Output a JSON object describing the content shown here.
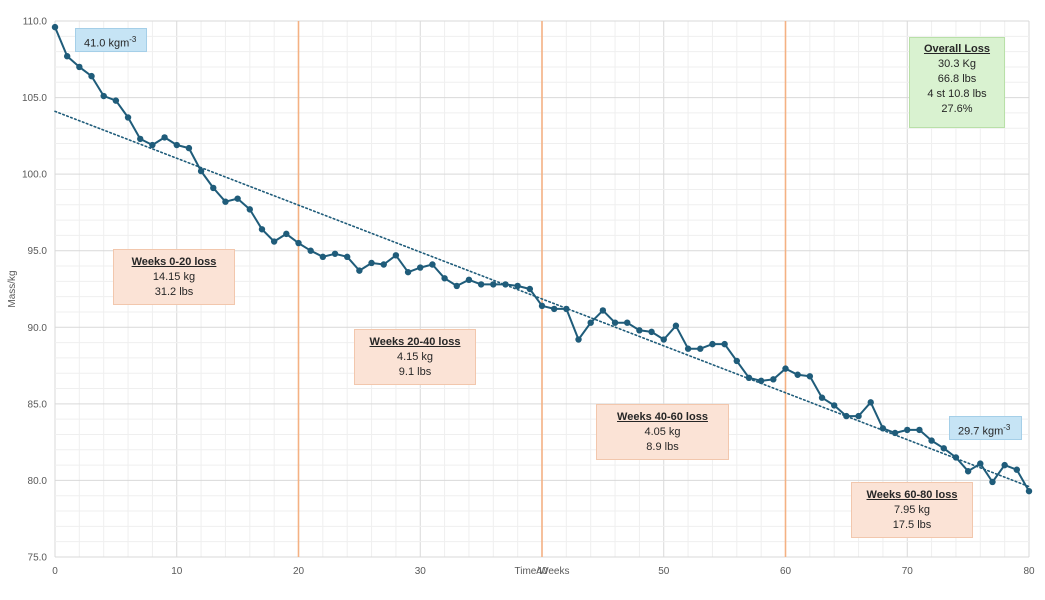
{
  "chart_data": {
    "type": "line",
    "title": "",
    "xlabel": "Time/Weeks",
    "ylabel": "Mass/kg",
    "xlim": [
      0,
      80
    ],
    "ylim": [
      75,
      110
    ],
    "x_ticks": [
      0,
      10,
      20,
      30,
      40,
      50,
      60,
      70,
      80
    ],
    "y_ticks": [
      "75.0",
      "80.0",
      "85.0",
      "90.0",
      "95.0",
      "100.0",
      "105.0",
      "110.0"
    ],
    "grid": true,
    "series": [
      {
        "name": "Mass",
        "color": "#1f5c7a",
        "x": [
          0,
          1,
          2,
          3,
          4,
          5,
          6,
          7,
          8,
          9,
          10,
          11,
          12,
          13,
          14,
          15,
          16,
          17,
          18,
          19,
          20,
          21,
          22,
          23,
          24,
          25,
          26,
          27,
          28,
          29,
          30,
          31,
          32,
          33,
          34,
          35,
          36,
          37,
          38,
          39,
          40,
          41,
          42,
          43,
          44,
          45,
          46,
          47,
          48,
          49,
          50,
          51,
          52,
          53,
          54,
          55,
          56,
          57,
          58,
          59,
          60,
          61,
          62,
          63,
          64,
          65,
          66,
          67,
          68,
          69,
          70,
          71,
          72,
          73,
          74,
          75,
          76,
          77,
          78,
          79,
          80
        ],
        "values": [
          109.6,
          107.7,
          107.0,
          106.4,
          105.1,
          104.8,
          103.7,
          102.3,
          101.9,
          102.4,
          101.9,
          101.7,
          100.2,
          99.1,
          98.2,
          98.4,
          97.7,
          96.4,
          95.6,
          96.1,
          95.5,
          95.0,
          94.6,
          94.8,
          94.6,
          93.7,
          94.2,
          94.1,
          94.7,
          93.6,
          93.9,
          94.1,
          93.2,
          92.7,
          93.1,
          92.8,
          92.8,
          92.8,
          92.7,
          92.5,
          91.4,
          91.2,
          91.2,
          89.2,
          90.3,
          91.1,
          90.3,
          90.3,
          89.8,
          89.7,
          89.2,
          90.1,
          88.6,
          88.6,
          88.9,
          88.9,
          87.8,
          86.7,
          86.5,
          86.6,
          87.3,
          86.9,
          86.8,
          85.4,
          84.9,
          84.2,
          84.2,
          85.1,
          83.4,
          83.1,
          83.3,
          83.3,
          82.6,
          82.1,
          81.5,
          80.6,
          81.1,
          79.9,
          81.0,
          80.7,
          79.3
        ]
      }
    ],
    "trendline": {
      "style": "dotted",
      "color": "#1f5c7a",
      "start": [
        0,
        104.1
      ],
      "end": [
        80,
        79.6
      ]
    },
    "vertical_markers": [
      20,
      40,
      60
    ],
    "marker_color": "#f4b183"
  },
  "annotations": {
    "overall": {
      "title": "Overall Loss",
      "line1": "30.3 Kg",
      "line2": "66.8 lbs",
      "line3": "4 st 10.8 lbs",
      "line4": "27.6%"
    },
    "w0_20": {
      "title": "Weeks 0-20 loss",
      "line1": "14.15 kg",
      "line2": "31.2 lbs"
    },
    "w20_40": {
      "title": "Weeks 20-40 loss",
      "line1": "4.15 kg",
      "line2": "9.1 lbs"
    },
    "w40_60": {
      "title": "Weeks 40-60 loss",
      "line1": "4.05 kg",
      "line2": "8.9 lbs"
    },
    "w60_80": {
      "title": "Weeks 60-80 loss",
      "line1": "7.95 kg",
      "line2": "17.5 lbs"
    },
    "bmi_start": {
      "value": "41.0 kgm",
      "exp": "-3"
    },
    "bmi_end": {
      "value": "29.7 kgm",
      "exp": "-3"
    }
  }
}
